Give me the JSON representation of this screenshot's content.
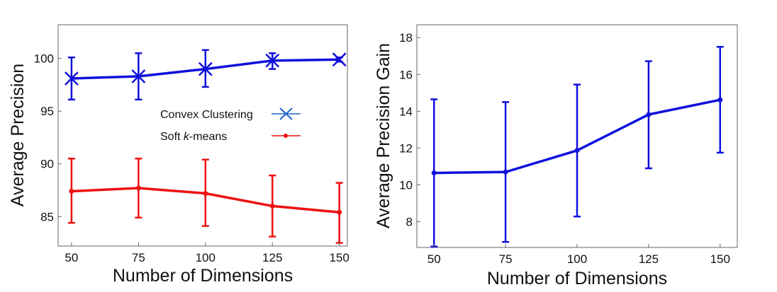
{
  "chart_data": [
    {
      "type": "line",
      "xlabel": "Number of Dimensions",
      "ylabel": "Average Precision",
      "x": [
        50,
        75,
        100,
        125,
        150
      ],
      "xlim": [
        45,
        153
      ],
      "ylim": [
        82.2,
        103.2
      ],
      "xticks": [
        50,
        75,
        100,
        125,
        150
      ],
      "yticks": [
        85,
        90,
        95,
        100
      ],
      "grid": false,
      "legend": "center-right",
      "series": [
        {
          "name": "Convex Clustering",
          "color": "#1010dd",
          "marker": "x",
          "values": [
            98.1,
            98.3,
            99.0,
            99.8,
            99.9
          ],
          "err_low": [
            96.1,
            96.1,
            97.3,
            99.0,
            99.7
          ],
          "err_high": [
            100.1,
            100.5,
            100.8,
            100.5,
            100.1
          ]
        },
        {
          "name": "Soft k-means",
          "name_prefix": "Soft ",
          "name_italic": "k",
          "name_suffix": "-means",
          "color": "#ee1111",
          "marker": "dot",
          "values": [
            87.4,
            87.7,
            87.2,
            86.0,
            85.4
          ],
          "err_low": [
            84.4,
            84.9,
            84.1,
            83.1,
            82.5
          ],
          "err_high": [
            90.5,
            90.5,
            90.4,
            88.9,
            88.2
          ]
        }
      ]
    },
    {
      "type": "line",
      "xlabel": "Number of Dimensions",
      "ylabel": "Average Precision Gain",
      "x": [
        50,
        75,
        100,
        125,
        150
      ],
      "xlim": [
        44,
        156
      ],
      "ylim": [
        6.6,
        18.7
      ],
      "xticks": [
        50,
        75,
        100,
        125,
        150
      ],
      "yticks": [
        8,
        10,
        12,
        14,
        16,
        18
      ],
      "grid": false,
      "legend": "none",
      "series": [
        {
          "name": "",
          "color": "#1010dd",
          "marker": "dot",
          "values": [
            10.65,
            10.7,
            11.87,
            13.82,
            14.62
          ],
          "err_low": [
            6.65,
            6.9,
            8.28,
            10.9,
            11.75
          ],
          "err_high": [
            14.65,
            14.5,
            15.45,
            16.72,
            17.5
          ]
        }
      ]
    }
  ]
}
